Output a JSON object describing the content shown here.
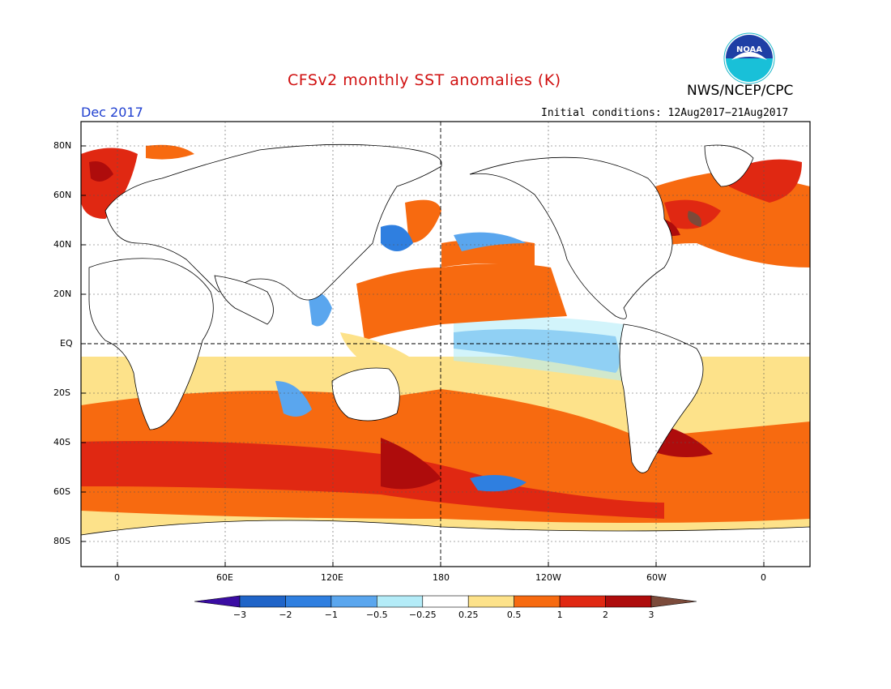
{
  "header": {
    "title": "CFSv2 monthly SST anomalies (K)",
    "agency": "NWS/NCEP/CPC",
    "period": "Dec 2017",
    "initial_conditions_label": "Initial conditions:",
    "initial_conditions_value": "12Aug2017−21Aug2017",
    "logo_text": "NOAA"
  },
  "map": {
    "lat_labels": [
      "80N",
      "60N",
      "40N",
      "20N",
      "EQ",
      "20S",
      "40S",
      "60S",
      "80S"
    ],
    "lon_labels": [
      "0",
      "60E",
      "120E",
      "180",
      "120W",
      "60W",
      "0"
    ]
  },
  "colorbar": {
    "tick_labels": [
      "−3",
      "−2",
      "−1",
      "−0.5",
      "−0.25",
      "0.25",
      "0.5",
      "1",
      "2",
      "3"
    ],
    "colors": [
      "#3a0ca3",
      "#1f64c8",
      "#2f7fe0",
      "#5aa6ee",
      "#b4ecf8",
      "#ffffff",
      "#fde28a",
      "#f76a10",
      "#e02812",
      "#ae0c0c",
      "#7b4a3a"
    ]
  },
  "colors": {
    "land": "#ffffff",
    "strong_warm": "#ae0c0c",
    "warm": "#f76a10",
    "slight_warm": "#fde28a",
    "cool": "#5aa6ee",
    "slight_cool": "#b4ecf8"
  }
}
